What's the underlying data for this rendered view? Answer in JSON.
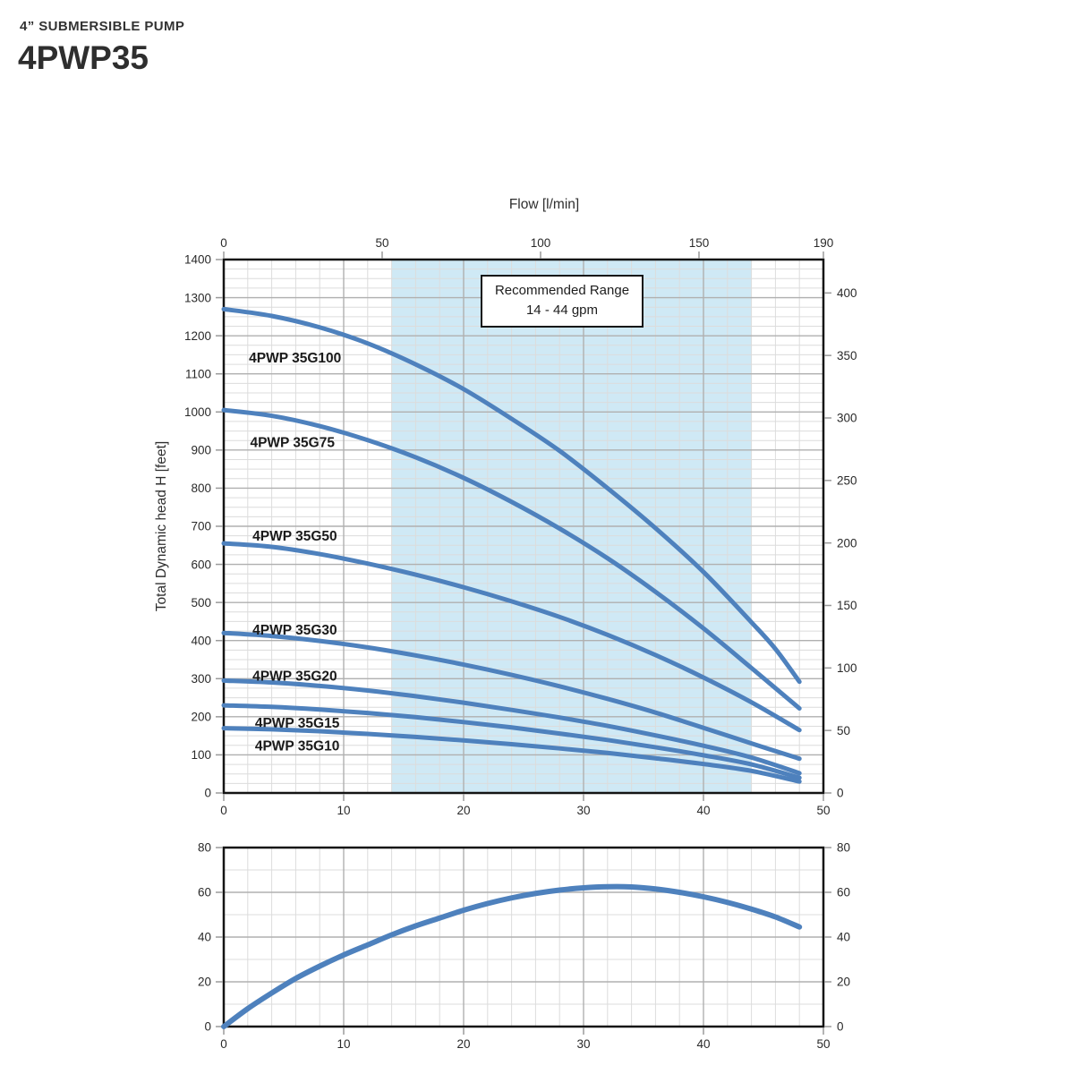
{
  "header": {
    "subtitle": "4” SUBMERSIBLE PUMP",
    "title": "4PWP35"
  },
  "colors": {
    "curve": "#4e81bd",
    "band": "#cfe9f5",
    "grid_minor": "#dcdcdc",
    "grid_major": "#b0b0b0",
    "border": "#141414",
    "tick": "#9a9a9a",
    "text": "#2a2a2a",
    "label": "#1a1a1a"
  },
  "chart_data": [
    {
      "name": "head-flow-chart",
      "type": "line",
      "title": "",
      "xlabel_top": "Flow [l/min]",
      "ylabel": "Total Dynamic head H [feet]",
      "xlim": [
        0,
        50
      ],
      "ylim": [
        0,
        1400
      ],
      "grid": {
        "x_minor": 2,
        "x_major": 10,
        "y_minor": 25,
        "y_major": 100
      },
      "line_width": 5,
      "axes": {
        "left": {
          "ticks": [
            0,
            100,
            200,
            300,
            400,
            500,
            600,
            700,
            800,
            900,
            1000,
            1100,
            1200,
            1300,
            1400
          ],
          "factor": 1
        },
        "right": {
          "ticks": [
            0,
            50,
            100,
            150,
            200,
            250,
            300,
            350,
            400
          ],
          "factor": 3.28084
        },
        "top": {
          "ticks": [
            0,
            50,
            100,
            150,
            190
          ],
          "factor": 0.2641720524
        },
        "bottom": {
          "ticks": [
            0,
            10,
            20,
            30,
            40,
            50
          ],
          "factor": 1
        }
      },
      "band": {
        "from_gpm": 14,
        "to_gpm": 44
      },
      "band_label": {
        "line1": "Recommended Range",
        "line2": "14 - 44 gpm"
      },
      "series": [
        {
          "name": "4PWP 35G100",
          "label_at": [
            2.1,
            1130
          ],
          "points": [
            [
              0,
              1270
            ],
            [
              4,
              1252
            ],
            [
              8,
              1222
            ],
            [
              12,
              1180
            ],
            [
              16,
              1125
            ],
            [
              20,
              1060
            ],
            [
              24,
              982
            ],
            [
              28,
              898
            ],
            [
              32,
              800
            ],
            [
              36,
              695
            ],
            [
              40,
              580
            ],
            [
              44,
              448
            ],
            [
              46,
              378
            ],
            [
              48,
              292
            ]
          ]
        },
        {
          "name": "4PWP 35G75",
          "label_at": [
            2.2,
            908
          ],
          "points": [
            [
              0,
              1005
            ],
            [
              4,
              990
            ],
            [
              8,
              963
            ],
            [
              12,
              926
            ],
            [
              16,
              881
            ],
            [
              20,
              827
            ],
            [
              24,
              764
            ],
            [
              28,
              694
            ],
            [
              32,
              616
            ],
            [
              36,
              528
            ],
            [
              40,
              432
            ],
            [
              44,
              328
            ],
            [
              48,
              222
            ]
          ]
        },
        {
          "name": "4PWP 35G50",
          "label_at": [
            2.4,
            662
          ],
          "points": [
            [
              0,
              655
            ],
            [
              4,
              646
            ],
            [
              8,
              627
            ],
            [
              12,
              602
            ],
            [
              16,
              573
            ],
            [
              20,
              540
            ],
            [
              24,
              503
            ],
            [
              28,
              462
            ],
            [
              32,
              415
            ],
            [
              36,
              362
            ],
            [
              40,
              303
            ],
            [
              44,
              238
            ],
            [
              48,
              165
            ]
          ]
        },
        {
          "name": "4PWP 35G30",
          "label_at": [
            2.4,
            416
          ],
          "points": [
            [
              0,
              420
            ],
            [
              4,
              412
            ],
            [
              8,
              399
            ],
            [
              12,
              382
            ],
            [
              16,
              361
            ],
            [
              20,
              337
            ],
            [
              24,
              310
            ],
            [
              28,
              280
            ],
            [
              32,
              247
            ],
            [
              36,
              211
            ],
            [
              40,
              171
            ],
            [
              44,
              130
            ],
            [
              48,
              90
            ]
          ]
        },
        {
          "name": "4PWP 35G20",
          "label_at": [
            2.4,
            295
          ],
          "points": [
            [
              0,
              295
            ],
            [
              4,
              290
            ],
            [
              8,
              281
            ],
            [
              12,
              269
            ],
            [
              16,
              254
            ],
            [
              20,
              237
            ],
            [
              24,
              218
            ],
            [
              28,
              198
            ],
            [
              32,
              176
            ],
            [
              36,
              151
            ],
            [
              40,
              124
            ],
            [
              44,
              93
            ],
            [
              48,
              52
            ]
          ]
        },
        {
          "name": "4PWP 35G15",
          "label_at": [
            2.6,
            172
          ],
          "points": [
            [
              0,
              230
            ],
            [
              4,
              226
            ],
            [
              8,
              219
            ],
            [
              12,
              210
            ],
            [
              16,
              199
            ],
            [
              20,
              186
            ],
            [
              24,
              172
            ],
            [
              28,
              156
            ],
            [
              32,
              139
            ],
            [
              36,
              120
            ],
            [
              40,
              99
            ],
            [
              44,
              75
            ],
            [
              48,
              40
            ]
          ]
        },
        {
          "name": "4PWP 35G10",
          "label_at": [
            2.6,
            112
          ],
          "points": [
            [
              0,
              170
            ],
            [
              4,
              167
            ],
            [
              8,
              162
            ],
            [
              12,
              155
            ],
            [
              16,
              147
            ],
            [
              20,
              138
            ],
            [
              24,
              128
            ],
            [
              28,
              117
            ],
            [
              32,
              105
            ],
            [
              36,
              91
            ],
            [
              40,
              76
            ],
            [
              44,
              58
            ],
            [
              48,
              30
            ]
          ]
        }
      ]
    },
    {
      "name": "efficiency-chart",
      "type": "line",
      "title": "",
      "xlabel": "",
      "ylabel": "",
      "xlim": [
        0,
        50
      ],
      "ylim": [
        0,
        80
      ],
      "grid": {
        "x_minor": 2,
        "x_major": 10,
        "y_minor": 10,
        "y_major": 20
      },
      "line_width": 6,
      "axes": {
        "left": {
          "ticks": [
            0,
            20,
            40,
            60,
            80
          ],
          "factor": 1
        },
        "right": {
          "ticks": [
            0,
            20,
            40,
            60,
            80
          ],
          "factor": 1
        },
        "bottom": {
          "ticks": [
            0,
            10,
            20,
            30,
            40,
            50
          ],
          "factor": 1
        }
      },
      "series": [
        {
          "name": "",
          "label_at": null,
          "points": [
            [
              0,
              0
            ],
            [
              2,
              8
            ],
            [
              4,
              15
            ],
            [
              6,
              21.5
            ],
            [
              8,
              27
            ],
            [
              10,
              32
            ],
            [
              12,
              36.5
            ],
            [
              14,
              41
            ],
            [
              16,
              45
            ],
            [
              18,
              48.5
            ],
            [
              20,
              52
            ],
            [
              22,
              55
            ],
            [
              24,
              57.5
            ],
            [
              26,
              59.5
            ],
            [
              28,
              61
            ],
            [
              30,
              62
            ],
            [
              32,
              62.5
            ],
            [
              34,
              62.4
            ],
            [
              36,
              61.5
            ],
            [
              38,
              60
            ],
            [
              40,
              58
            ],
            [
              42,
              55.5
            ],
            [
              44,
              52.5
            ],
            [
              46,
              49
            ],
            [
              48,
              44.5
            ]
          ]
        }
      ]
    }
  ]
}
